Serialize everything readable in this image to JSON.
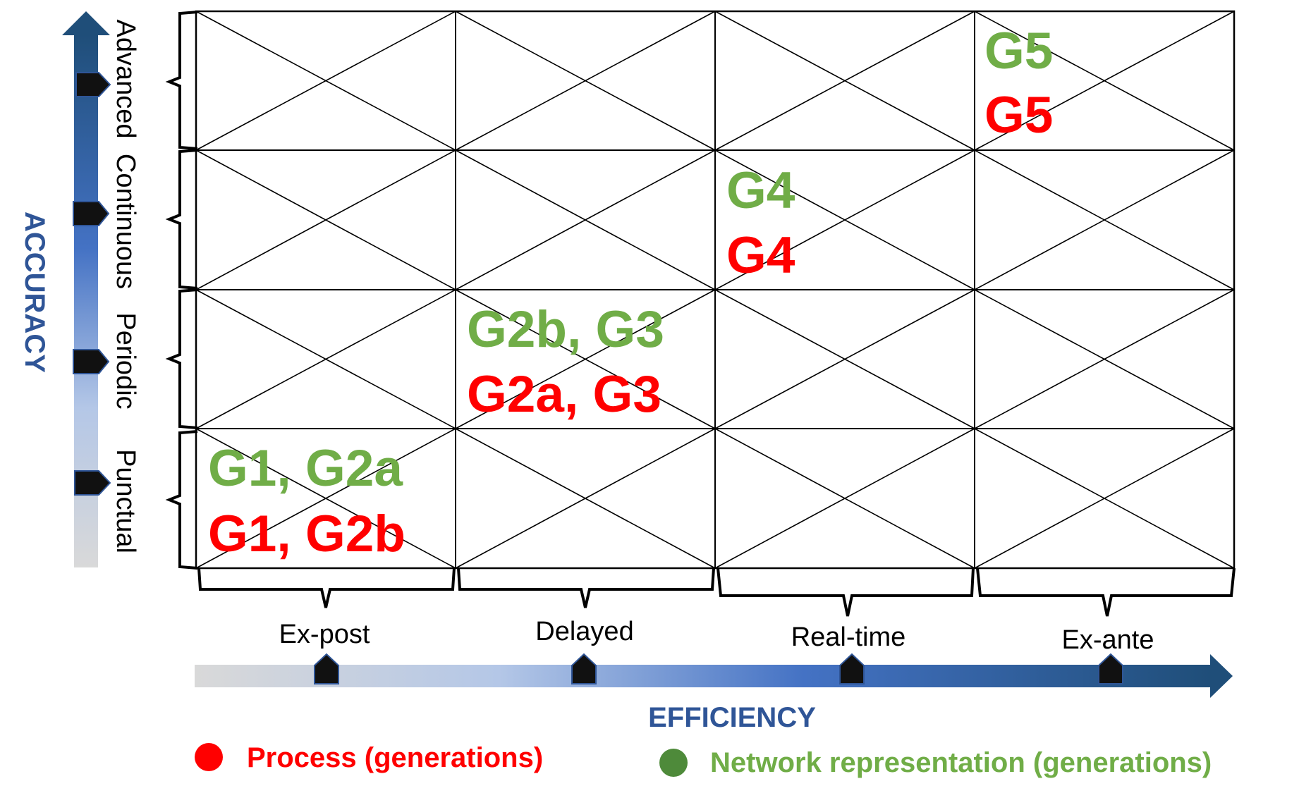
{
  "diagram": {
    "y_axis": {
      "title": "ACCURACY",
      "levels": [
        "Advanced",
        "Continuous",
        "Periodic",
        "Punctual"
      ]
    },
    "x_axis": {
      "title": "EFFICIENCY",
      "levels": [
        "Ex-post",
        "Delayed",
        "Real-time",
        "Ex-ante"
      ]
    },
    "cells": [
      {
        "row": "Punctual",
        "column": "Ex-post",
        "network": "G1, G2a",
        "process": "G1, G2b"
      },
      {
        "row": "Periodic",
        "column": "Delayed",
        "network": "G2b, G3",
        "process": "G2a, G3"
      },
      {
        "row": "Continuous",
        "column": "Real-time",
        "network": "G4",
        "process": "G4"
      },
      {
        "row": "Advanced",
        "column": "Ex-ante",
        "network": "G5",
        "process": "G5"
      }
    ]
  },
  "legend": {
    "process": {
      "label": "Process (generations)",
      "color": "#ff0000"
    },
    "network": {
      "label": "Network representation (generations)",
      "color": "#4e8a3a",
      "text_color": "#70ad47"
    }
  },
  "colors": {
    "axis_title": "#2f5597",
    "network_text": "#70ad47",
    "process_text": "#ff0000"
  }
}
